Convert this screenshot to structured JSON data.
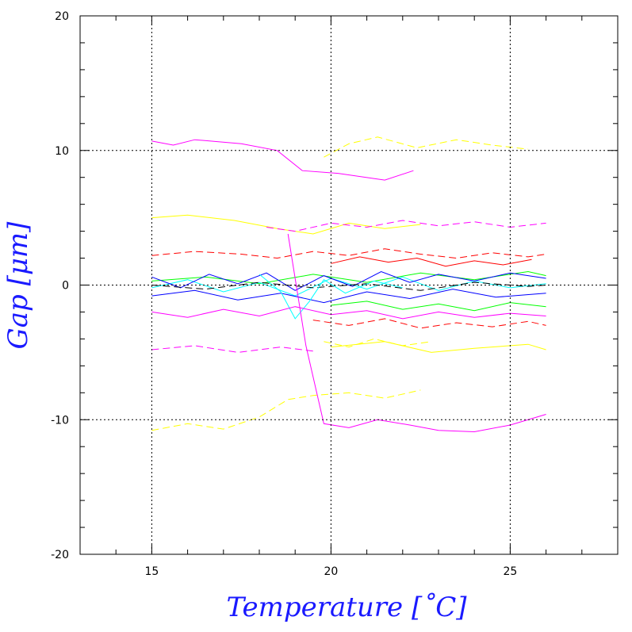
{
  "chart_data": {
    "type": "line",
    "xlabel": "Temperature [˚C]",
    "ylabel": "Gap [μm]",
    "xlim": [
      13,
      28
    ],
    "ylim": [
      -20,
      20
    ],
    "x_ticks": [
      15,
      20,
      25
    ],
    "y_ticks": [
      20,
      10,
      0,
      -10,
      -20
    ],
    "grid": "dotted at labeled ticks",
    "series": [
      {
        "color": "#ff00ff",
        "style": "solid",
        "x": [
          15.0,
          15.6,
          16.2,
          17.5,
          18.5,
          19.2,
          20.2,
          21.5,
          22.3
        ],
        "y": [
          10.7,
          10.4,
          10.8,
          10.5,
          10.0,
          8.5,
          8.3,
          7.8,
          8.5
        ]
      },
      {
        "color": "#ffff00",
        "style": "dashed",
        "x": [
          19.8,
          20.5,
          21.3,
          22.4,
          23.5,
          24.5,
          25.5
        ],
        "y": [
          9.5,
          10.5,
          11.0,
          10.2,
          10.8,
          10.4,
          10.1
        ]
      },
      {
        "color": "#ffff00",
        "style": "solid",
        "x": [
          15.0,
          16.0,
          17.3,
          18.5,
          19.5,
          20.5,
          21.5,
          22.5
        ],
        "y": [
          5.0,
          5.2,
          4.8,
          4.2,
          3.8,
          4.6,
          4.2,
          4.5
        ]
      },
      {
        "color": "#ff00ff",
        "style": "dashed",
        "x": [
          18.2,
          19.0,
          20.0,
          21.0,
          22.0,
          23.0,
          24.0,
          25.0,
          26.0
        ],
        "y": [
          4.3,
          4.0,
          4.6,
          4.3,
          4.8,
          4.4,
          4.7,
          4.3,
          4.6
        ]
      },
      {
        "color": "#ff0000",
        "style": "dashed",
        "x": [
          15.0,
          16.2,
          17.5,
          18.5,
          19.5,
          20.5,
          21.5,
          22.5,
          23.5,
          24.5,
          25.5,
          26.0
        ],
        "y": [
          2.2,
          2.5,
          2.3,
          2.0,
          2.5,
          2.2,
          2.7,
          2.3,
          2.0,
          2.4,
          2.1,
          2.3
        ]
      },
      {
        "color": "#ff0000",
        "style": "solid",
        "x": [
          20.0,
          20.8,
          21.6,
          22.4,
          23.2,
          24.0,
          24.8,
          25.6
        ],
        "y": [
          1.6,
          2.1,
          1.7,
          2.0,
          1.4,
          1.8,
          1.5,
          1.9
        ]
      },
      {
        "color": "#00ff00",
        "style": "solid",
        "x": [
          15.0,
          16.5,
          18.0,
          19.5,
          21.0,
          22.5,
          24.0,
          25.5,
          26.0
        ],
        "y": [
          0.3,
          0.6,
          0.1,
          0.8,
          0.2,
          0.9,
          0.4,
          1.0,
          0.7
        ]
      },
      {
        "color": "#00ffff",
        "style": "solid",
        "x": [
          15.0,
          16.0,
          17.0,
          18.0,
          19.0,
          20.0,
          21.0,
          22.0,
          23.0,
          24.0,
          25.0,
          26.0
        ],
        "y": [
          -0.2,
          0.4,
          -0.5,
          0.2,
          -0.8,
          0.5,
          -0.3,
          0.6,
          -0.4,
          0.3,
          -0.2,
          0.1
        ]
      },
      {
        "color": "#0000ff",
        "style": "solid",
        "x": [
          15.0,
          15.8,
          16.6,
          17.4,
          18.2,
          19.0,
          19.8,
          20.6,
          21.4,
          22.2,
          23.0,
          24.0,
          25.0,
          26.0
        ],
        "y": [
          0.6,
          -0.2,
          0.8,
          0.1,
          0.9,
          -0.4,
          0.7,
          -0.1,
          1.0,
          0.2,
          0.8,
          0.3,
          0.9,
          0.5
        ]
      },
      {
        "color": "#000000",
        "style": "dashed",
        "x": [
          15.0,
          16.5,
          18.0,
          19.5,
          21.0,
          22.5,
          24.0,
          25.5,
          26.0
        ],
        "y": [
          0.0,
          -0.3,
          0.2,
          -0.2,
          0.1,
          -0.4,
          0.2,
          -0.1,
          0.0
        ]
      },
      {
        "color": "#0000ff",
        "style": "solid",
        "x": [
          15.0,
          16.2,
          17.4,
          18.6,
          19.8,
          21.0,
          22.2,
          23.4,
          24.6,
          26.0
        ],
        "y": [
          -0.8,
          -0.4,
          -1.1,
          -0.6,
          -1.3,
          -0.5,
          -1.0,
          -0.3,
          -0.9,
          -0.6
        ]
      },
      {
        "color": "#00ffff",
        "style": "solid",
        "x": [
          18.0,
          18.6,
          19.0,
          19.4,
          19.8,
          20.4,
          21.2,
          22.0
        ],
        "y": [
          0.8,
          -0.5,
          -2.5,
          -1.2,
          0.4,
          -0.6,
          0.3,
          -0.2
        ]
      },
      {
        "color": "#00ff00",
        "style": "solid",
        "x": [
          20.0,
          21.0,
          22.0,
          23.0,
          24.0,
          25.0,
          26.0
        ],
        "y": [
          -1.5,
          -1.2,
          -1.8,
          -1.4,
          -1.9,
          -1.3,
          -1.6
        ]
      },
      {
        "color": "#ff00ff",
        "style": "solid",
        "x": [
          15.0,
          16.0,
          17.0,
          18.0,
          19.0,
          20.0,
          21.0,
          22.0,
          23.0,
          24.0,
          25.0,
          26.0
        ],
        "y": [
          -2.0,
          -2.4,
          -1.8,
          -2.3,
          -1.6,
          -2.2,
          -1.9,
          -2.5,
          -2.0,
          -2.4,
          -2.1,
          -2.3
        ]
      },
      {
        "color": "#ff0000",
        "style": "dashed",
        "x": [
          19.5,
          20.5,
          21.5,
          22.5,
          23.5,
          24.5,
          25.5,
          26.0
        ],
        "y": [
          -2.6,
          -3.0,
          -2.5,
          -3.2,
          -2.8,
          -3.1,
          -2.7,
          -3.0
        ]
      },
      {
        "color": "#ffff00",
        "style": "dashed",
        "x": [
          19.8,
          20.5,
          21.2,
          22.0,
          22.8
        ],
        "y": [
          -4.2,
          -4.6,
          -4.0,
          -4.5,
          -4.2
        ]
      },
      {
        "color": "#ff00ff",
        "style": "dashed",
        "x": [
          15.0,
          16.2,
          17.4,
          18.6,
          19.5
        ],
        "y": [
          -4.8,
          -4.5,
          -5.0,
          -4.6,
          -4.9
        ]
      },
      {
        "color": "#ffff00",
        "style": "solid",
        "x": [
          20.0,
          21.5,
          22.8,
          24.0,
          25.5,
          26.0
        ],
        "y": [
          -4.6,
          -4.2,
          -5.0,
          -4.7,
          -4.4,
          -4.8
        ]
      },
      {
        "color": "#ffff00",
        "style": "dashed",
        "x": [
          15.0,
          16.0,
          17.0,
          18.0,
          18.8,
          19.5,
          20.5,
          21.5,
          22.5
        ],
        "y": [
          -10.8,
          -10.3,
          -10.7,
          -9.8,
          -8.5,
          -8.2,
          -8.0,
          -8.4,
          -7.8
        ]
      },
      {
        "color": "#ff00ff",
        "style": "solid",
        "x": [
          18.8,
          19.3,
          19.8,
          20.5,
          21.3,
          22.2,
          23.0,
          24.0,
          25.0,
          26.0
        ],
        "y": [
          3.8,
          -4.5,
          -10.3,
          -10.6,
          -10.0,
          -10.4,
          -10.8,
          -10.9,
          -10.4,
          -9.6
        ]
      }
    ]
  }
}
